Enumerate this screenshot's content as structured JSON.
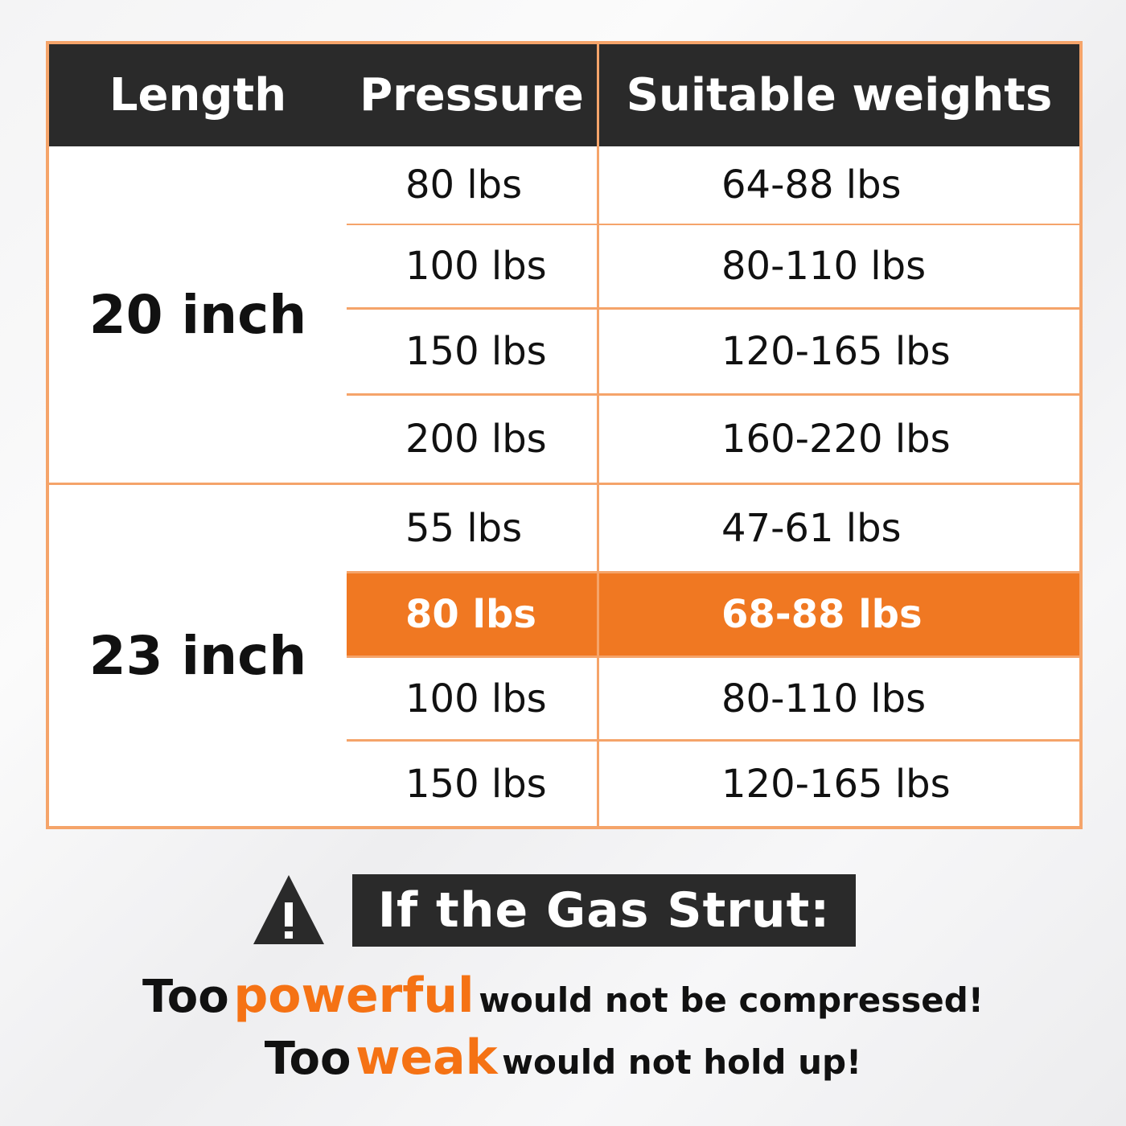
{
  "colors": {
    "border": "#f5a46a",
    "header_bg": "#2a2a2a",
    "highlight": "#f07822",
    "accent_text": "#f57214"
  },
  "table": {
    "headers": [
      "Length",
      "Pressure",
      "Suitable weights"
    ],
    "groups": [
      {
        "length": "20 inch",
        "rows": [
          {
            "pressure": "80 lbs",
            "weights": "64-88 lbs",
            "highlighted": false
          },
          {
            "pressure": "100 lbs",
            "weights": "80-110 lbs",
            "highlighted": false
          },
          {
            "pressure": "150 lbs",
            "weights": "120-165 lbs",
            "highlighted": false
          },
          {
            "pressure": "200 lbs",
            "weights": "160-220 lbs",
            "highlighted": false
          }
        ]
      },
      {
        "length": "23 inch",
        "rows": [
          {
            "pressure": "55 lbs",
            "weights": "47-61 lbs",
            "highlighted": false
          },
          {
            "pressure": "80 lbs",
            "weights": "68-88 lbs",
            "highlighted": true
          },
          {
            "pressure": "100 lbs",
            "weights": "80-110 lbs",
            "highlighted": false
          },
          {
            "pressure": "150 lbs",
            "weights": "120-165 lbs",
            "highlighted": false
          }
        ]
      }
    ]
  },
  "warning": {
    "icon": "warning-triangle-icon",
    "title": "If the Gas Strut:",
    "line1": {
      "prefix": "Too",
      "accent": "powerful",
      "suffix": "would not be compressed!"
    },
    "line2": {
      "prefix": "Too",
      "accent": "weak",
      "suffix": "would not hold up!"
    }
  }
}
